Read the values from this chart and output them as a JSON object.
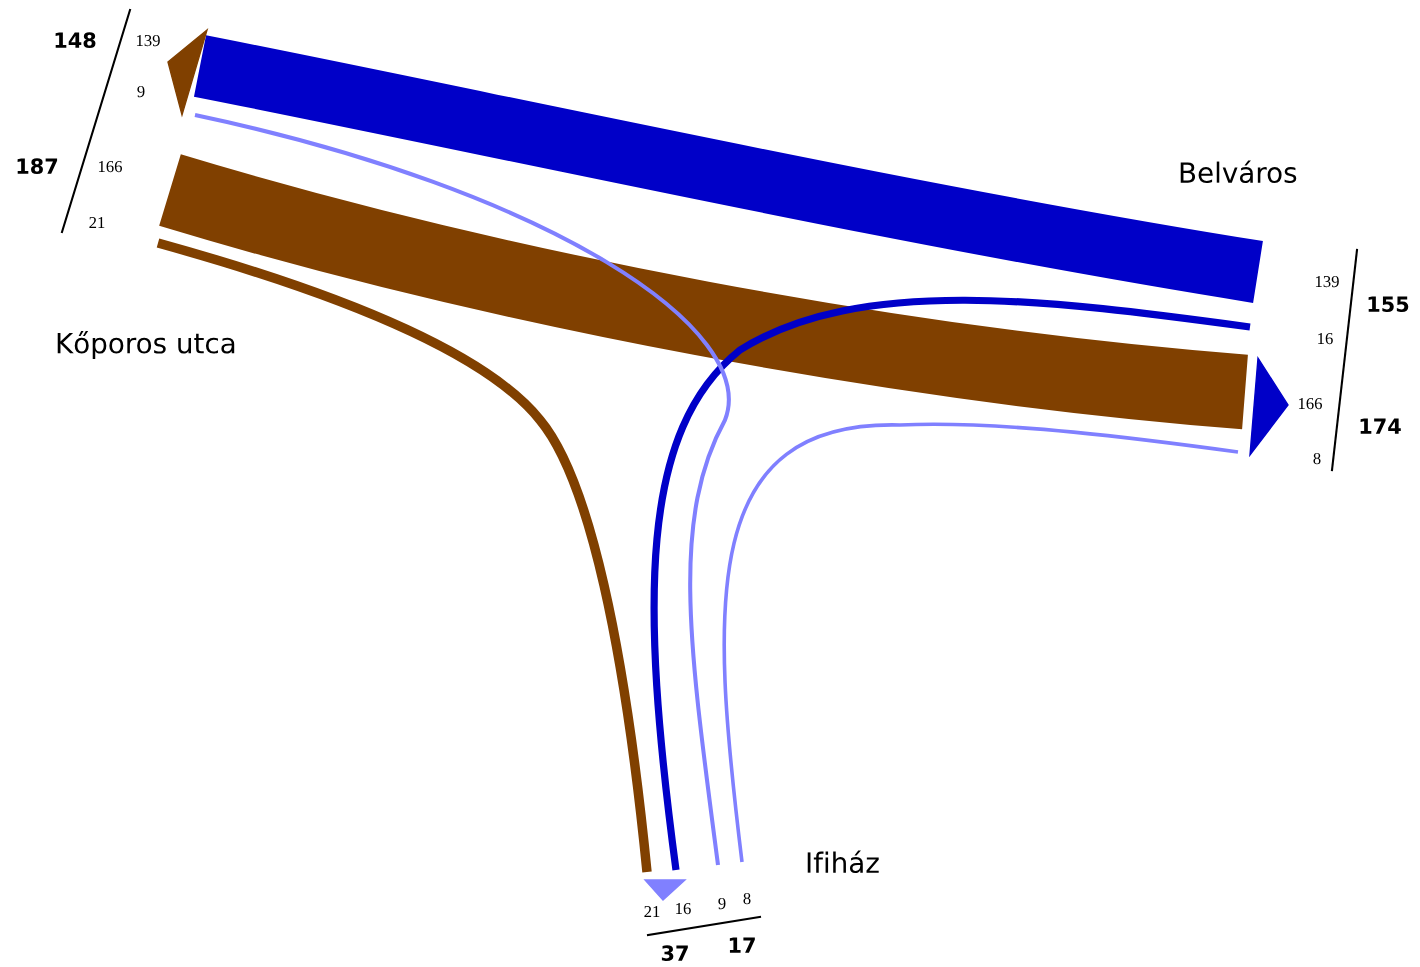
{
  "chart_data": {
    "type": "other",
    "categories": [
      "Kőporos utca",
      "Belváros",
      "Ifiház"
    ],
    "series": [
      {
        "color": "#804000",
        "values": [
          null,
          166,
          21
        ]
      },
      {
        "color": "#0000c8",
        "values": [
          139,
          null,
          16
        ]
      },
      {
        "color": "#8080ff",
        "values": [
          9,
          8,
          null
        ]
      }
    ],
    "data_labels": true,
    "annotations": [
      "166",
      "21",
      "139",
      "16",
      "9",
      "8"
    ],
    "totals": [
      "148",
      "187",
      "155",
      "174",
      "37",
      "17"
    ]
  }
}
